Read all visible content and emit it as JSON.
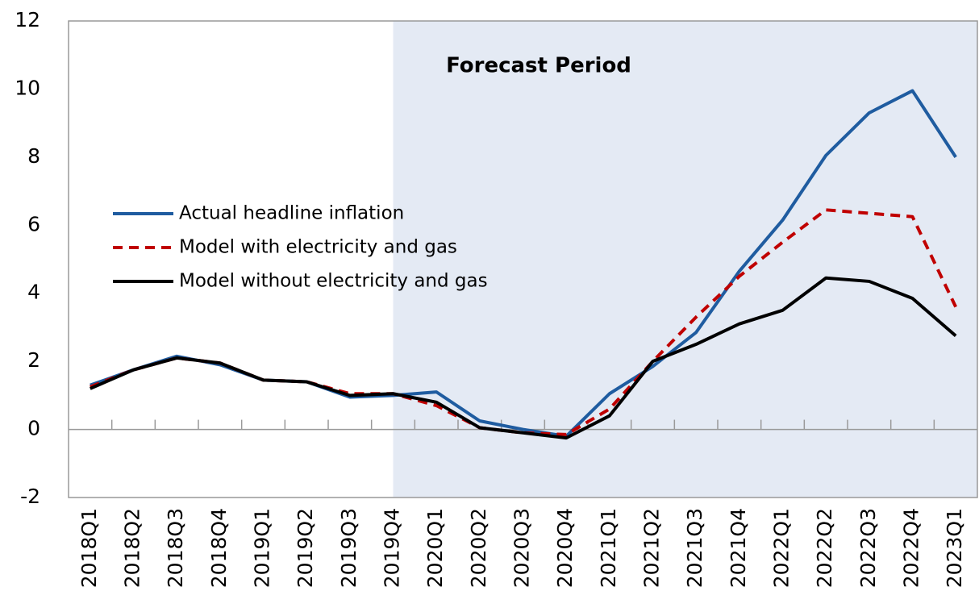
{
  "chart_data": {
    "type": "line",
    "annotation": "Forecast Period",
    "shaded_from": "2019Q4",
    "shade_color": "#e4eaf4",
    "categories": [
      "2018Q1",
      "2018Q2",
      "2018Q3",
      "2018Q4",
      "2019Q1",
      "2019Q2",
      "2019Q3",
      "2019Q4",
      "2020Q1",
      "2020Q2",
      "2020Q3",
      "2020Q4",
      "2021Q1",
      "2021Q2",
      "2021Q3",
      "2021Q4",
      "2022Q1",
      "2022Q2",
      "2022Q3",
      "2022Q4",
      "2023Q1"
    ],
    "series": [
      {
        "name": "Actual headline inflation",
        "color": "#1f5ca0",
        "dash": "solid",
        "values": [
          1.3,
          1.75,
          2.15,
          1.9,
          1.45,
          1.4,
          0.95,
          1.0,
          1.1,
          0.25,
          0.0,
          -0.2,
          1.05,
          1.85,
          2.85,
          4.65,
          6.15,
          8.05,
          9.3,
          9.95,
          8.0
        ]
      },
      {
        "name": "Model with electricity and gas",
        "color": "#c00000",
        "dash": "dashed",
        "values": [
          1.25,
          1.75,
          2.1,
          1.95,
          1.45,
          1.4,
          1.05,
          1.05,
          0.7,
          0.05,
          -0.1,
          -0.15,
          0.6,
          2.0,
          3.3,
          4.5,
          5.5,
          6.45,
          6.35,
          6.25,
          3.6
        ]
      },
      {
        "name": "Model without electricity and gas",
        "color": "#000000",
        "dash": "solid",
        "values": [
          1.2,
          1.75,
          2.1,
          1.95,
          1.45,
          1.4,
          1.0,
          1.05,
          0.8,
          0.05,
          -0.1,
          -0.25,
          0.4,
          2.0,
          2.5,
          3.1,
          3.5,
          4.45,
          4.35,
          3.85,
          2.75
        ]
      }
    ],
    "ylim": [
      -2,
      12
    ],
    "yticks": [
      -2,
      0,
      2,
      4,
      6,
      8,
      10,
      12
    ],
    "grid": false
  }
}
